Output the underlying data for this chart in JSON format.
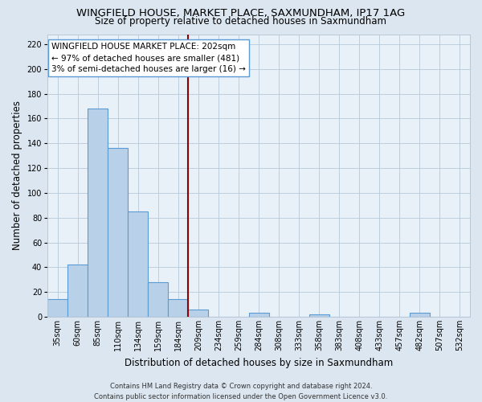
{
  "title": "WINGFIELD HOUSE, MARKET PLACE, SAXMUNDHAM, IP17 1AG",
  "subtitle": "Size of property relative to detached houses in Saxmundham",
  "xlabel": "Distribution of detached houses by size in Saxmundham",
  "ylabel": "Number of detached properties",
  "categories": [
    "35sqm",
    "60sqm",
    "85sqm",
    "110sqm",
    "134sqm",
    "159sqm",
    "184sqm",
    "209sqm",
    "234sqm",
    "259sqm",
    "284sqm",
    "308sqm",
    "333sqm",
    "358sqm",
    "383sqm",
    "408sqm",
    "433sqm",
    "457sqm",
    "482sqm",
    "507sqm",
    "532sqm"
  ],
  "values": [
    14,
    42,
    168,
    136,
    85,
    28,
    14,
    6,
    0,
    0,
    3,
    0,
    0,
    2,
    0,
    0,
    0,
    0,
    3,
    0,
    0
  ],
  "bar_color": "#b8d0e8",
  "bar_edge_color": "#5b9bd5",
  "reference_line_color": "#8b0000",
  "annotation_text_line1": "WINGFIELD HOUSE MARKET PLACE: 202sqm",
  "annotation_text_line2": "← 97% of detached houses are smaller (481)",
  "annotation_text_line3": "3% of semi-detached houses are larger (16) →",
  "ylim": [
    0,
    228
  ],
  "yticks": [
    0,
    20,
    40,
    60,
    80,
    100,
    120,
    140,
    160,
    180,
    200,
    220
  ],
  "footer_line1": "Contains HM Land Registry data © Crown copyright and database right 2024.",
  "footer_line2": "Contains public sector information licensed under the Open Government Licence v3.0.",
  "bg_color": "#dce6f0",
  "plot_bg_color": "#e8f0f8",
  "grid_color": "#b8c8d8",
  "title_fontsize": 9.5,
  "subtitle_fontsize": 8.5,
  "axis_label_fontsize": 8.5,
  "tick_fontsize": 7,
  "footer_fontsize": 6,
  "annotation_fontsize": 7.5,
  "ref_line_index": 7
}
